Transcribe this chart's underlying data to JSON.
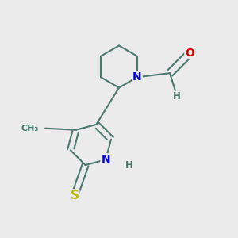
{
  "background_color": "#ebebeb",
  "bond_color": "#4a7a6e",
  "bond_width": 1.5,
  "atom_colors": {
    "N": "#0000dd",
    "O": "#dd0000",
    "S": "#bbbb00",
    "C": "#4a7a6e",
    "H": "#4a7a6e"
  },
  "font_size_atom": 10,
  "font_size_small": 8.5,
  "font_size_methyl": 8
}
